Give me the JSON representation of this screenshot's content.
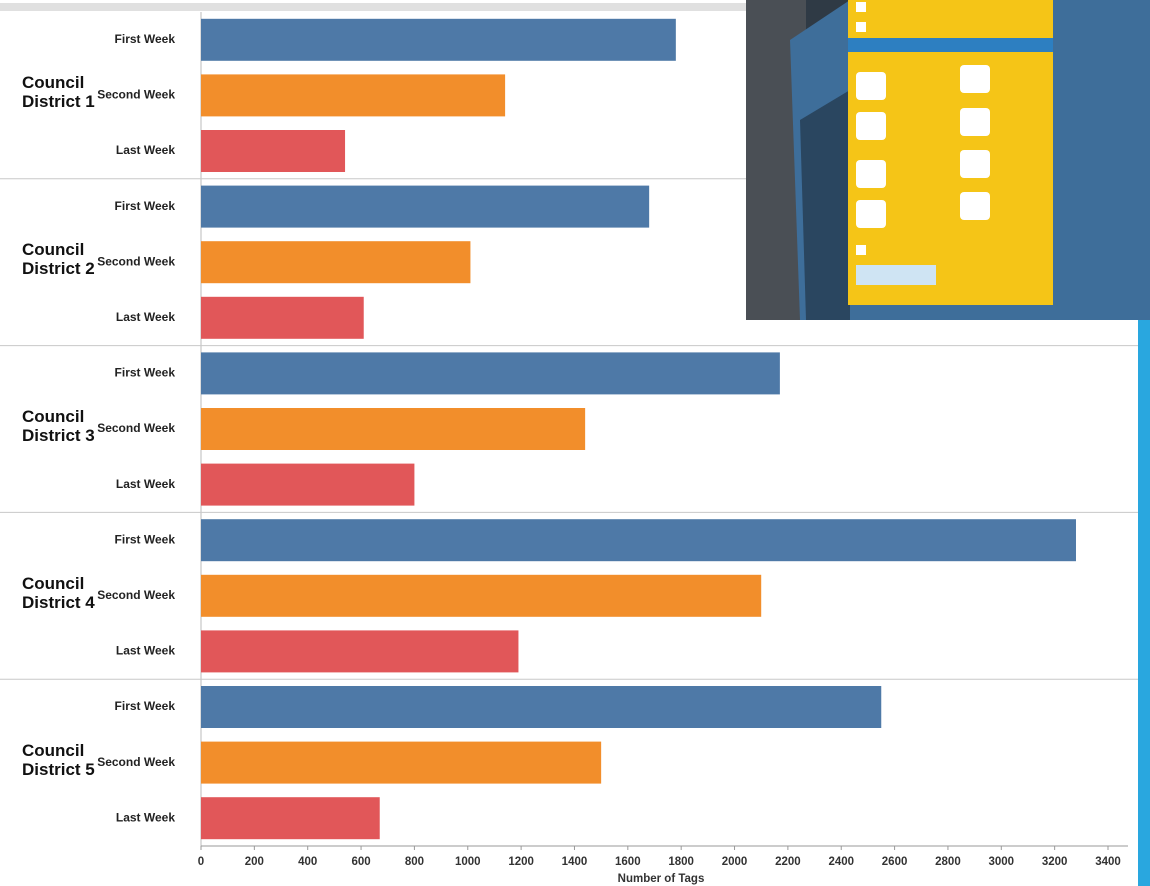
{
  "chart_data": {
    "type": "grouped-hbar",
    "x_label": "Number of Tags",
    "categories": [
      "Council District 1",
      "Council District 2",
      "Council District 3",
      "Council District 4",
      "Council District 5"
    ],
    "series": [
      {
        "name": "First Week",
        "color": "#4e79a7",
        "values": [
          1780,
          1680,
          2170,
          3280,
          2550
        ]
      },
      {
        "name": "Second Week",
        "color": "#f28e2b",
        "values": [
          1140,
          1010,
          1440,
          2100,
          1500
        ]
      },
      {
        "name": "Last Week",
        "color": "#e15759",
        "values": [
          540,
          610,
          800,
          1190,
          670
        ]
      }
    ],
    "xlim": [
      0,
      3400
    ],
    "xticks": [
      0,
      200,
      400,
      600,
      800,
      1000,
      1200,
      1400,
      1600,
      1800,
      2000,
      2200,
      2400,
      2600,
      2800,
      3000,
      3200,
      3400
    ]
  }
}
